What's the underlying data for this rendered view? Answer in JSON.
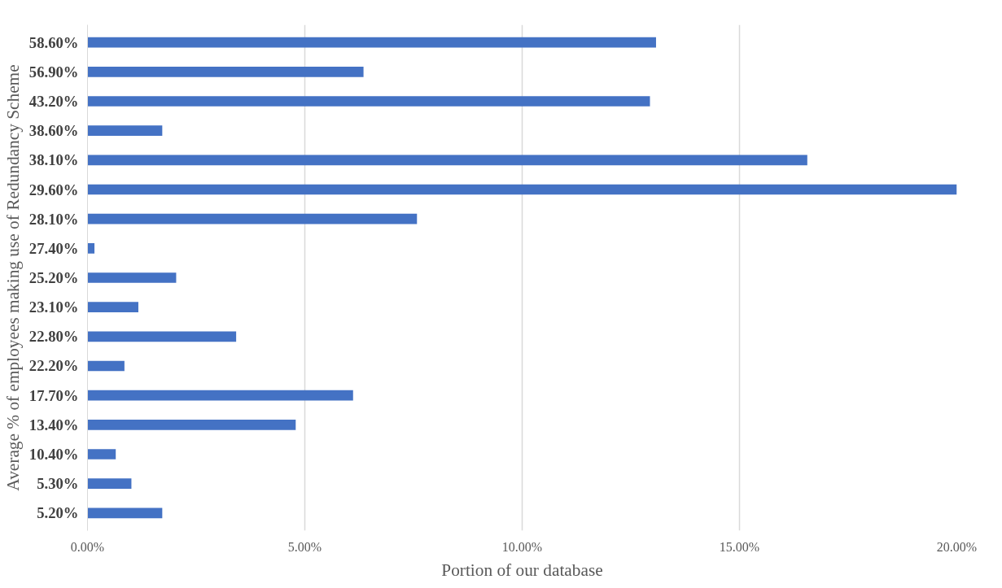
{
  "chart_data": {
    "type": "bar",
    "orientation": "horizontal",
    "xlabel": "Portion of our database",
    "ylabel": "Average % of employees making use of Redundancy Scheme",
    "categories": [
      "58.60%",
      "56.90%",
      "43.20%",
      "38.60%",
      "38.10%",
      "29.60%",
      "28.10%",
      "27.40%",
      "25.20%",
      "23.10%",
      "22.80%",
      "22.20%",
      "17.70%",
      "13.40%",
      "10.40%",
      "5.30%",
      "5.20%"
    ],
    "values": [
      13.08,
      6.35,
      12.94,
      1.72,
      16.56,
      20.0,
      7.58,
      0.16,
      2.04,
      1.17,
      3.42,
      0.85,
      6.11,
      4.79,
      0.65,
      1.01,
      1.72
    ],
    "color": "#4472c4",
    "xlim": [
      0,
      20
    ],
    "xticks": [
      {
        "value": 0,
        "label": "0.00%"
      },
      {
        "value": 5,
        "label": "5.00%"
      },
      {
        "value": 10,
        "label": "10.00%"
      },
      {
        "value": 15,
        "label": "15.00%"
      },
      {
        "value": 20,
        "label": "20.00%"
      }
    ],
    "grid": "x"
  }
}
